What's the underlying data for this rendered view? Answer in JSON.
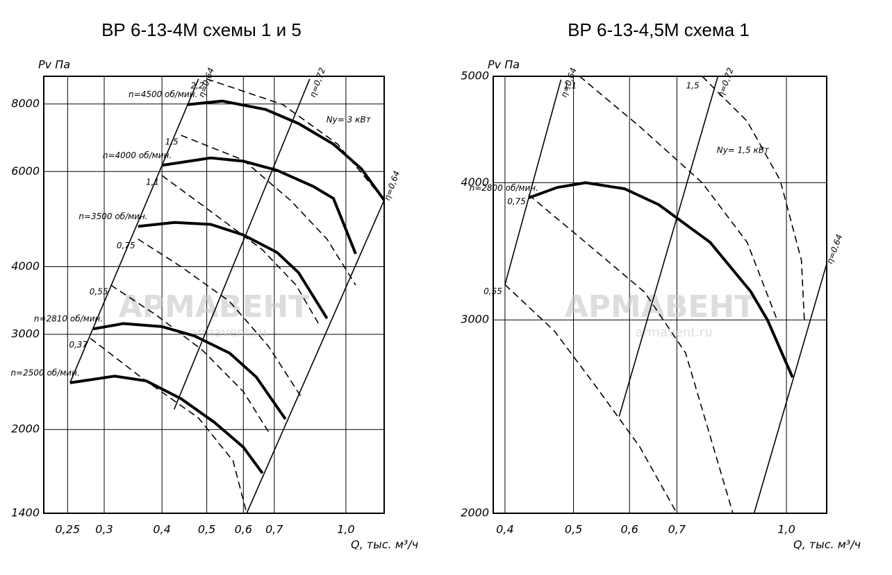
{
  "chart_data": [
    {
      "type": "line",
      "title": "ВР 6-13-4М  схемы 1 и 5",
      "y_label": "Pv Па",
      "x_label": "Q, тыс. м³/ч",
      "annotation": "Nу= 3 кВт",
      "watermark": "АРМАВЕНТ",
      "watermark_url": "armavent.ru",
      "xscale": "log",
      "yscale": "log",
      "grid": true,
      "xlim": [
        0.222,
        1.21
      ],
      "ylim": [
        1400,
        9000
      ],
      "xticks": [
        {
          "value": 0.25,
          "label": "0,25"
        },
        {
          "value": 0.3,
          "label": "0,3"
        },
        {
          "value": 0.4,
          "label": "0,4"
        },
        {
          "value": 0.5,
          "label": "0,5"
        },
        {
          "value": 0.6,
          "label": "0,6"
        },
        {
          "value": 0.7,
          "label": "0,7"
        },
        {
          "value": 1.0,
          "label": "1,0"
        }
      ],
      "yticks": [
        1400,
        2000,
        3000,
        4000,
        6000,
        8000
      ],
      "series": [
        {
          "name": "n=4500 об/мин.",
          "style": "bold",
          "color": "#000000",
          "x": [
            0.455,
            0.54,
            0.67,
            0.79,
            0.94,
            1.08,
            1.21
          ],
          "values": [
            7980,
            8100,
            7815,
            7360,
            6740,
            6070,
            5310
          ]
        },
        {
          "name": "n=4000 об/мин.",
          "style": "bold",
          "color": "#000000",
          "x": [
            0.4,
            0.51,
            0.6,
            0.71,
            0.85,
            0.94,
            1.05
          ],
          "values": [
            6160,
            6360,
            6270,
            6030,
            5630,
            5350,
            4225
          ]
        },
        {
          "name": "n=3500 об/мин.",
          "style": "bold",
          "color": "#000000",
          "x": [
            0.355,
            0.425,
            0.51,
            0.6,
            0.71,
            0.79,
            0.91
          ],
          "values": [
            4750,
            4830,
            4790,
            4580,
            4250,
            3900,
            3210
          ]
        },
        {
          "name": "n=2810 об/мин.",
          "style": "bold",
          "color": "#000000",
          "x": [
            0.284,
            0.33,
            0.4,
            0.47,
            0.56,
            0.64,
            0.74
          ],
          "values": [
            3070,
            3140,
            3100,
            2980,
            2770,
            2500,
            2090
          ]
        },
        {
          "name": "n=2500 об/мин.",
          "style": "bold",
          "color": "#000000",
          "x": [
            0.253,
            0.316,
            0.37,
            0.44,
            0.52,
            0.6,
            0.66
          ],
          "values": [
            2440,
            2510,
            2460,
            2280,
            2060,
            1855,
            1660
          ]
        },
        {
          "name": "η=0,64",
          "style": "solid",
          "color": "#000000",
          "x": [
            0.253,
            0.48
          ],
          "values": [
            2440,
            8900
          ]
        },
        {
          "name": "η=0,72",
          "style": "solid",
          "color": "#000000",
          "x": [
            0.425,
            0.835
          ],
          "values": [
            2180,
            8900
          ]
        },
        {
          "name": "η=0,64",
          "style": "solid",
          "color": "#000000",
          "x": [
            0.61,
            1.21
          ],
          "values": [
            1400,
            5310
          ]
        },
        {
          "name": "2,2",
          "style": "dashed",
          "color": "#000000",
          "x": [
            0.5,
            0.73,
            0.96,
            1.19
          ],
          "values": [
            8900,
            7980,
            6740,
            5400
          ]
        },
        {
          "name": "1,5",
          "style": "dashed",
          "color": "#000000",
          "x": [
            0.44,
            0.6,
            0.76,
            0.91,
            1.05
          ],
          "values": [
            7000,
            6300,
            5300,
            4500,
            3700
          ]
        },
        {
          "name": "1,1",
          "style": "dashed",
          "color": "#000000",
          "x": [
            0.4,
            0.52,
            0.66,
            0.78,
            0.88
          ],
          "values": [
            5900,
            5000,
            4300,
            3700,
            3100
          ]
        },
        {
          "name": "0,75",
          "style": "dashed",
          "color": "#000000",
          "x": [
            0.355,
            0.44,
            0.56,
            0.68,
            0.8
          ],
          "values": [
            4500,
            4000,
            3450,
            2850,
            2300
          ]
        },
        {
          "name": "0,55",
          "style": "dashed",
          "color": "#000000",
          "x": [
            0.31,
            0.39,
            0.49,
            0.6,
            0.68
          ],
          "values": [
            3700,
            3250,
            2800,
            2350,
            1980
          ]
        },
        {
          "name": "0,37",
          "style": "dashed",
          "color": "#000000",
          "x": [
            0.28,
            0.36,
            0.48,
            0.57,
            0.61
          ],
          "values": [
            2950,
            2500,
            2100,
            1750,
            1400
          ]
        }
      ]
    },
    {
      "type": "line",
      "title": "ВР 6-13-4,5М  схема 1",
      "y_label": "Pv Па",
      "x_label": "Q, тыс. м³/ч",
      "annotation": "Nу= 1,5 кВт",
      "watermark": "АРМАВЕНТ",
      "watermark_url": "armavent.ru",
      "xscale": "log",
      "yscale": "log",
      "grid": true,
      "xlim": [
        0.385,
        1.14
      ],
      "ylim": [
        2000,
        5000
      ],
      "xticks": [
        {
          "value": 0.4,
          "label": "0,4"
        },
        {
          "value": 0.5,
          "label": "0,5"
        },
        {
          "value": 0.6,
          "label": "0,6"
        },
        {
          "value": 0.7,
          "label": "0,7"
        },
        {
          "value": 1.0,
          "label": "1,0"
        }
      ],
      "yticks": [
        2000,
        3000,
        4000,
        5000
      ],
      "series": [
        {
          "name": "n=2800 об/мин.",
          "style": "bold",
          "color": "#000000",
          "x": [
            0.432,
            0.474,
            0.52,
            0.59,
            0.66,
            0.78,
            0.89,
            0.94,
            1.02
          ],
          "values": [
            3875,
            3960,
            4000,
            3950,
            3820,
            3530,
            3185,
            3000,
            2660
          ]
        },
        {
          "name": "η=0,64",
          "style": "solid",
          "color": "#000000",
          "x": [
            0.4,
            0.48
          ],
          "values": [
            3230,
            4965
          ]
        },
        {
          "name": "η=0,72",
          "style": "solid",
          "color": "#000000",
          "x": [
            0.58,
            0.8
          ],
          "values": [
            2450,
            5000
          ]
        },
        {
          "name": "η=0,64",
          "style": "solid",
          "color": "#000000",
          "x": [
            0.9,
            1.14
          ],
          "values": [
            2000,
            3375
          ]
        },
        {
          "name": "1,5",
          "style": "dashed",
          "color": "#000000",
          "x": [
            0.76,
            0.88,
            0.98,
            1.05,
            1.06
          ],
          "values": [
            5000,
            4550,
            4020,
            3400,
            3000
          ]
        },
        {
          "name": "1,1",
          "style": "dashed",
          "color": "#000000",
          "x": [
            0.51,
            0.62,
            0.76,
            0.88,
            0.97
          ],
          "values": [
            5000,
            4500,
            4000,
            3530,
            3000
          ]
        },
        {
          "name": "0,75",
          "style": "dashed",
          "color": "#000000",
          "x": [
            0.432,
            0.52,
            0.63,
            0.72,
            0.84
          ],
          "values": [
            3900,
            3530,
            3180,
            2800,
            2000
          ]
        },
        {
          "name": "0,55",
          "style": "dashed",
          "color": "#000000",
          "x": [
            0.4,
            0.47,
            0.54,
            0.62,
            0.7
          ],
          "values": [
            3230,
            2930,
            2600,
            2300,
            2000
          ]
        }
      ]
    }
  ]
}
